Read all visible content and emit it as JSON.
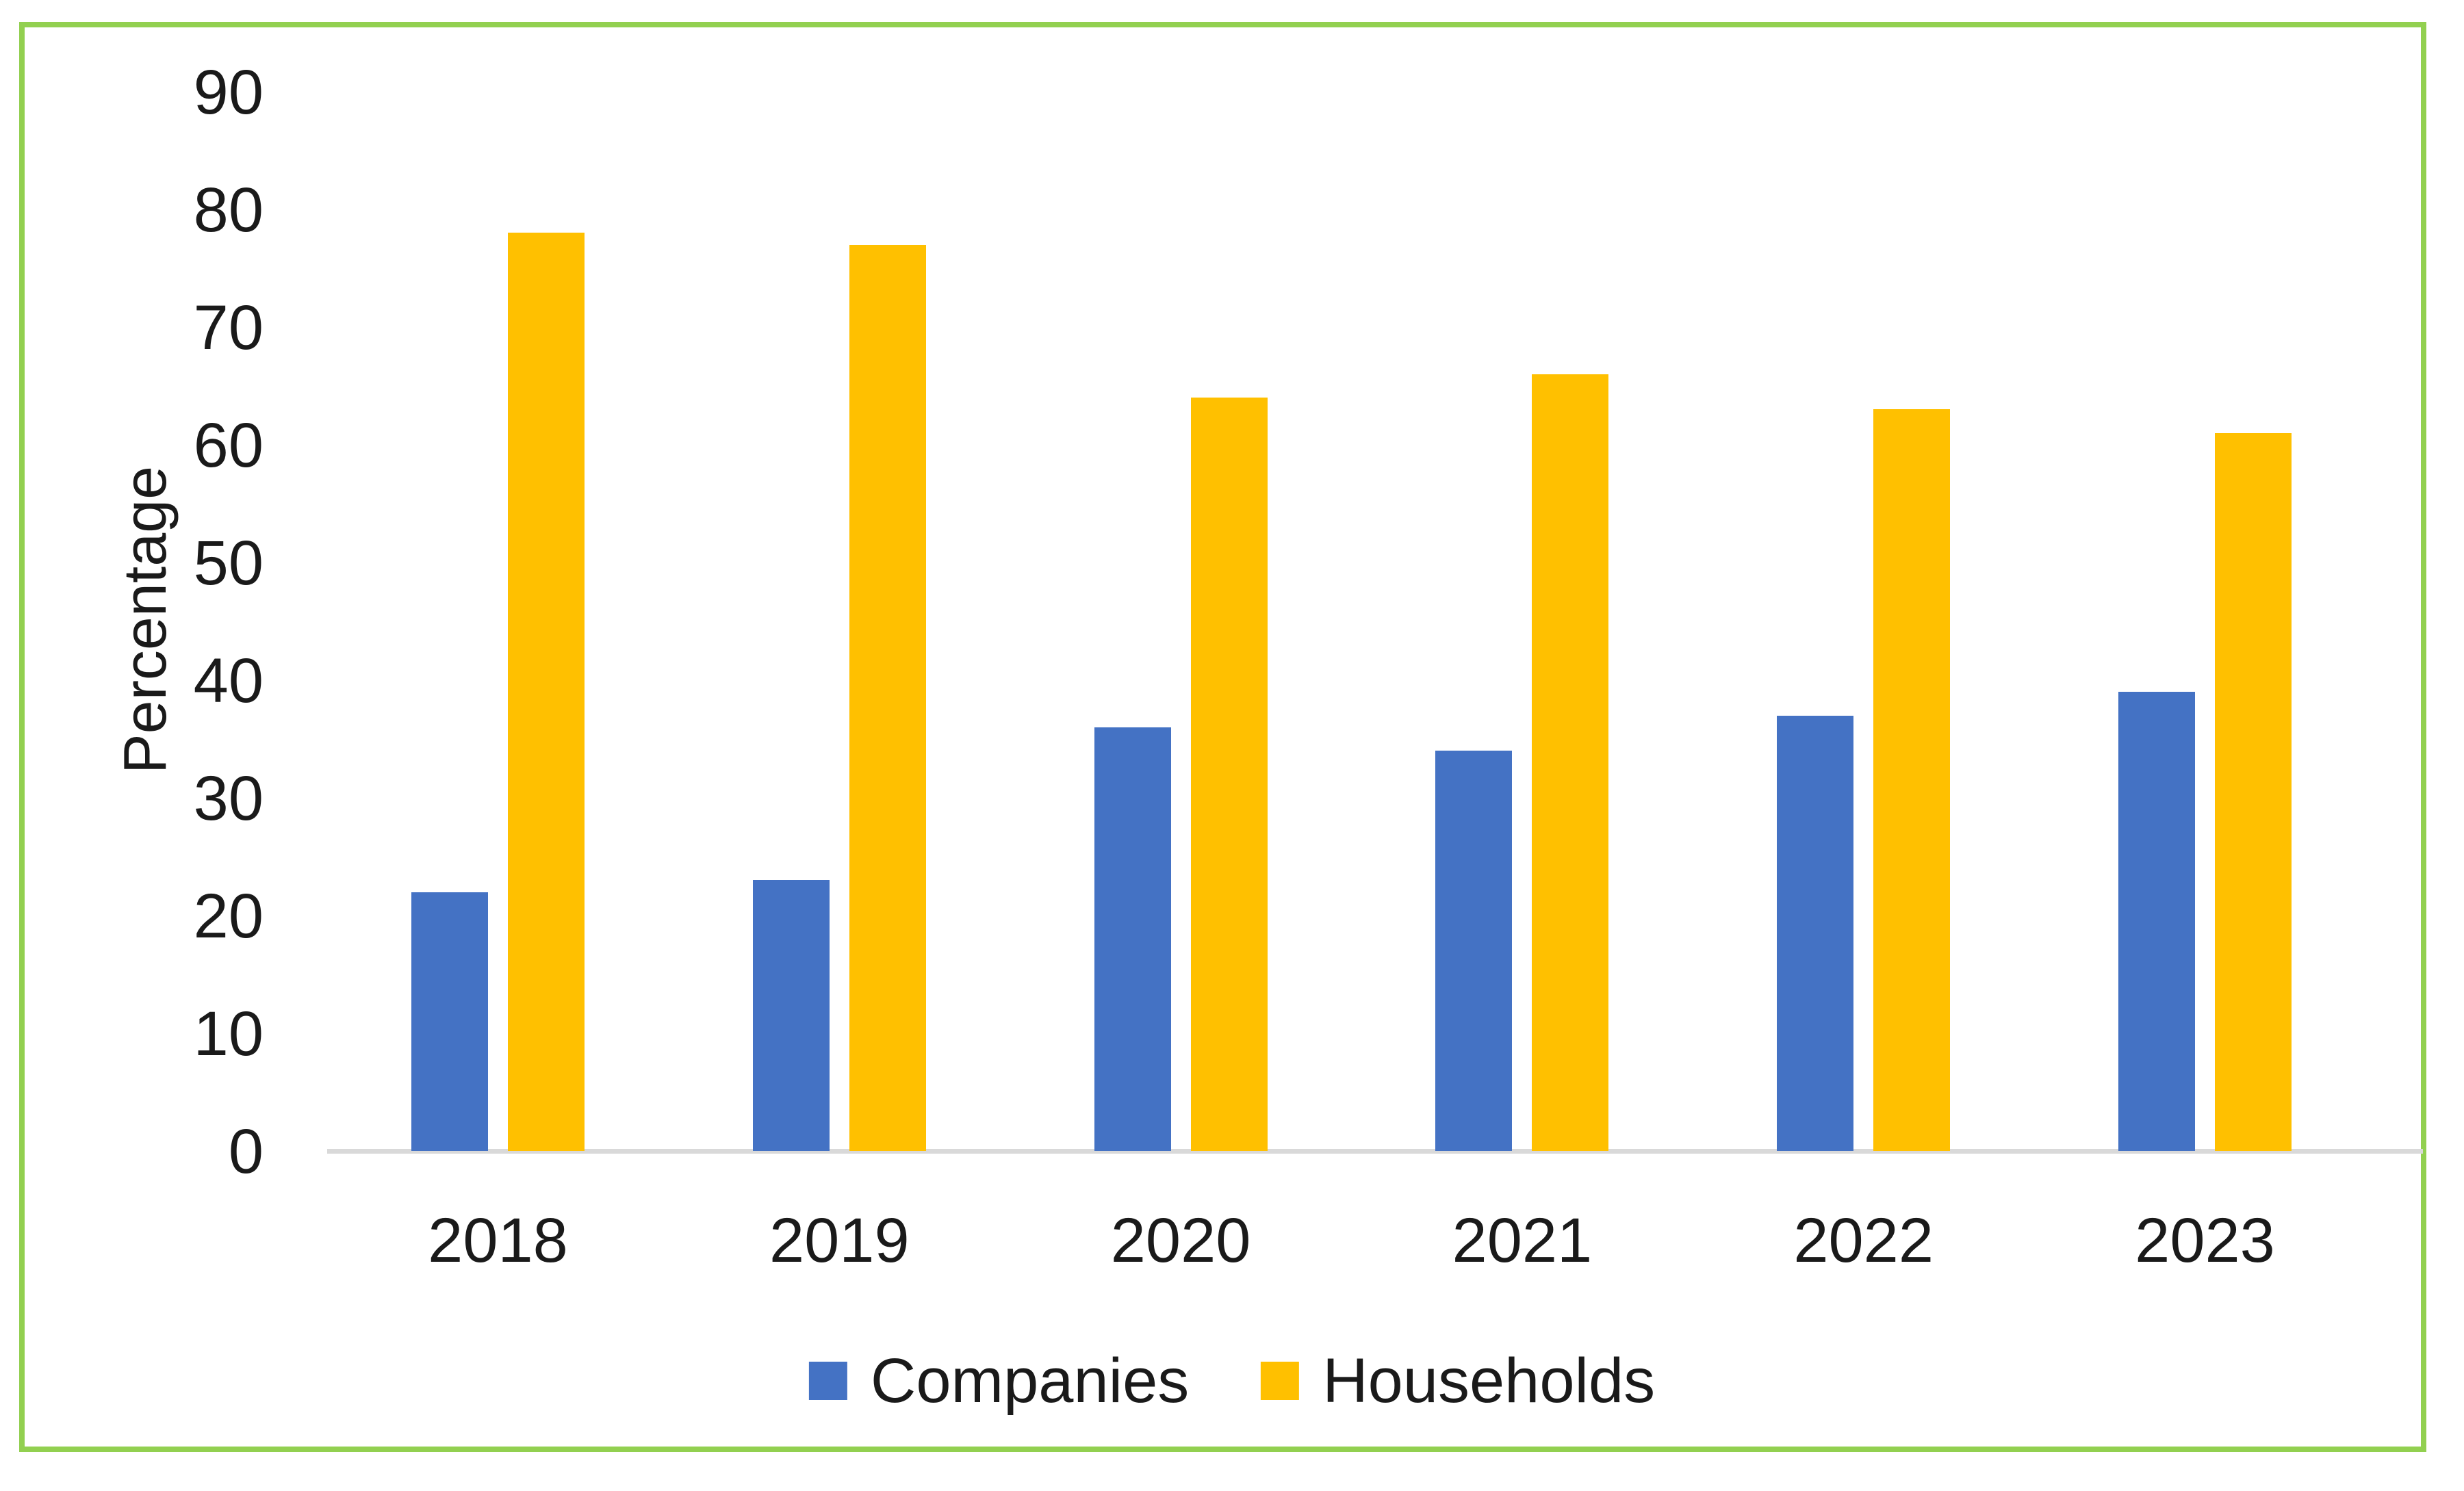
{
  "chart_data": {
    "type": "bar",
    "title": "",
    "categories": [
      "2018",
      "2019",
      "2020",
      "2021",
      "2022",
      "2023"
    ],
    "series": [
      {
        "name": "Companies",
        "color": "#4472C4",
        "values": [
          22,
          23,
          36,
          34,
          37,
          39
        ]
      },
      {
        "name": "Households",
        "color": "#FFC000",
        "values": [
          78,
          77,
          64,
          66,
          63,
          61
        ]
      }
    ],
    "xlabel": "",
    "ylabel": "Percentage",
    "ylim": [
      0,
      90
    ],
    "yticks": [
      0,
      10,
      20,
      30,
      40,
      50,
      60,
      70,
      80,
      90
    ],
    "grid": false,
    "legend_position": "bottom"
  },
  "colors": {
    "frame_border": "#92D050",
    "axis_line": "#D9D9D9",
    "text": "#1A1A1A",
    "background": "#FFFFFF"
  }
}
